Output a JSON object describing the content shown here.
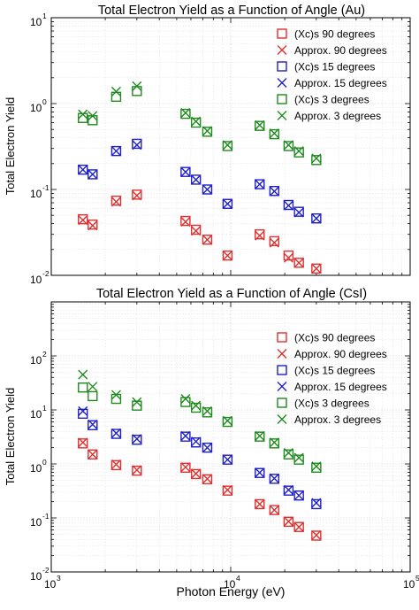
{
  "colors": {
    "au90": "#e03030",
    "au15": "#2020c8",
    "au3": "#1e8a1e"
  },
  "chart_data": [
    {
      "type": "scatter",
      "title": "Total Electron Yield as a Function of Angle (Au)",
      "xlabel": "",
      "ylabel": "Total Electron Yield",
      "xscale": "log",
      "yscale": "log",
      "xlim": [
        1000,
        100000
      ],
      "ylim": [
        0.01,
        10
      ],
      "xticks": [
        {
          "value": 1000,
          "base": "10",
          "exp": "3"
        },
        {
          "value": 10000,
          "base": "10",
          "exp": "4"
        },
        {
          "value": 100000,
          "base": "10",
          "exp": "5"
        }
      ],
      "yticks": [
        {
          "value": 0.01,
          "base": "10",
          "exp": "-2"
        },
        {
          "value": 0.1,
          "base": "10",
          "exp": "-1"
        },
        {
          "value": 1,
          "base": "10",
          "exp": "0"
        },
        {
          "value": 10,
          "base": "10",
          "exp": "1"
        }
      ],
      "grid": true,
      "legend": "top-right",
      "series": [
        {
          "name": "(Xc)s 90 degrees",
          "marker": "square",
          "color": "#e03030",
          "x": [
            1500,
            1700,
            2300,
            3000,
            5600,
            6400,
            7400,
            9600,
            14500,
            17500,
            21000,
            24000,
            30000
          ],
          "y": [
            0.045,
            0.039,
            0.074,
            0.087,
            0.043,
            0.034,
            0.026,
            0.017,
            0.03,
            0.025,
            0.017,
            0.014,
            0.012
          ]
        },
        {
          "name": "Approx. 90 degrees",
          "marker": "x",
          "color": "#e03030",
          "x": [
            1500,
            1700,
            2300,
            3000,
            5600,
            6400,
            7400,
            9600,
            14500,
            17500,
            21000,
            24000,
            30000
          ],
          "y": [
            0.044,
            0.038,
            0.072,
            0.085,
            0.042,
            0.033,
            0.026,
            0.017,
            0.029,
            0.024,
            0.016,
            0.014,
            0.012
          ]
        },
        {
          "name": "(Xc)s 15 degrees",
          "marker": "square",
          "color": "#2020c8",
          "x": [
            1500,
            1700,
            2300,
            3000,
            5600,
            6400,
            7400,
            9600,
            14500,
            17500,
            21000,
            24000,
            30000
          ],
          "y": [
            0.17,
            0.15,
            0.28,
            0.34,
            0.16,
            0.13,
            0.1,
            0.068,
            0.115,
            0.096,
            0.066,
            0.055,
            0.046
          ]
        },
        {
          "name": "Approx. 15 degrees",
          "marker": "x",
          "color": "#2020c8",
          "x": [
            1500,
            1700,
            2300,
            3000,
            5600,
            6400,
            7400,
            9600,
            14500,
            17500,
            21000,
            24000,
            30000
          ],
          "y": [
            0.17,
            0.15,
            0.28,
            0.33,
            0.16,
            0.13,
            0.1,
            0.068,
            0.115,
            0.095,
            0.065,
            0.054,
            0.046
          ]
        },
        {
          "name": "(Xc)s 3 degrees",
          "marker": "square",
          "color": "#1e8a1e",
          "x": [
            1500,
            1700,
            2300,
            3000,
            5600,
            6400,
            7400,
            9600,
            14500,
            17500,
            21000,
            24000,
            30000
          ],
          "y": [
            0.68,
            0.64,
            1.2,
            1.4,
            0.76,
            0.6,
            0.47,
            0.32,
            0.55,
            0.44,
            0.32,
            0.27,
            0.22
          ]
        },
        {
          "name": "Approx. 3 degrees",
          "marker": "x",
          "color": "#1e8a1e",
          "x": [
            1500,
            1700,
            2300,
            3000,
            5600,
            6400,
            7400,
            9600,
            14500,
            17500,
            21000,
            24000,
            30000
          ],
          "y": [
            0.75,
            0.72,
            1.38,
            1.6,
            0.78,
            0.62,
            0.48,
            0.33,
            0.56,
            0.45,
            0.33,
            0.28,
            0.23
          ]
        }
      ]
    },
    {
      "type": "scatter",
      "title": "Total Electron Yield as a Function of Angle (CsI)",
      "xlabel": "Photon Energy (eV)",
      "ylabel": "Total Electron Yield",
      "xscale": "log",
      "yscale": "log",
      "xlim": [
        1000,
        100000
      ],
      "ylim": [
        0.01,
        1000
      ],
      "xticks": [
        {
          "value": 1000,
          "base": "10",
          "exp": "3"
        },
        {
          "value": 10000,
          "base": "10",
          "exp": "4"
        },
        {
          "value": 100000,
          "base": "10",
          "exp": "5"
        }
      ],
      "yticks": [
        {
          "value": 0.01,
          "base": "10",
          "exp": "-2"
        },
        {
          "value": 0.1,
          "base": "10",
          "exp": "-1"
        },
        {
          "value": 1,
          "base": "10",
          "exp": "0"
        },
        {
          "value": 10,
          "base": "10",
          "exp": "1"
        },
        {
          "value": 100,
          "base": "10",
          "exp": "2"
        }
      ],
      "grid": true,
      "legend": "top-right",
      "series": [
        {
          "name": "(Xc)s 90 degrees",
          "marker": "square",
          "color": "#e03030",
          "x": [
            1500,
            1700,
            2300,
            3000,
            5600,
            6400,
            7400,
            9600,
            14500,
            17500,
            21000,
            24000,
            30000
          ],
          "y": [
            2.4,
            1.5,
            0.95,
            0.75,
            0.85,
            0.65,
            0.52,
            0.32,
            0.18,
            0.14,
            0.085,
            0.068,
            0.047
          ]
        },
        {
          "name": "Approx. 90 degrees",
          "marker": "x",
          "color": "#e03030",
          "x": [
            1500,
            1700,
            2300,
            3000,
            5600,
            6400,
            7400,
            9600,
            14500,
            17500,
            21000,
            24000,
            30000
          ],
          "y": [
            2.5,
            1.5,
            0.98,
            0.77,
            0.87,
            0.66,
            0.53,
            0.33,
            0.18,
            0.14,
            0.086,
            0.068,
            0.048
          ]
        },
        {
          "name": "(Xc)s 15 degrees",
          "marker": "square",
          "color": "#2020c8",
          "x": [
            1500,
            1700,
            2300,
            3000,
            5600,
            6400,
            7400,
            9600,
            14500,
            17500,
            21000,
            24000,
            30000
          ],
          "y": [
            8.5,
            5.2,
            3.6,
            2.8,
            3.2,
            2.5,
            2.0,
            1.2,
            0.68,
            0.53,
            0.32,
            0.26,
            0.18
          ]
        },
        {
          "name": "Approx. 15 degrees",
          "marker": "x",
          "color": "#2020c8",
          "x": [
            1500,
            1700,
            2300,
            3000,
            5600,
            6400,
            7400,
            9600,
            14500,
            17500,
            21000,
            24000,
            30000
          ],
          "y": [
            9.5,
            5.4,
            3.7,
            2.9,
            3.3,
            2.6,
            2.0,
            1.2,
            0.69,
            0.54,
            0.33,
            0.26,
            0.19
          ]
        },
        {
          "name": "(Xc)s 3 degrees",
          "marker": "square",
          "color": "#1e8a1e",
          "x": [
            1500,
            1700,
            2300,
            3000,
            5600,
            6400,
            7400,
            9600,
            14500,
            17500,
            21000,
            24000,
            30000
          ],
          "y": [
            26,
            18,
            16,
            12,
            14,
            11,
            9,
            6,
            3.2,
            2.4,
            1.5,
            1.2,
            0.85
          ]
        },
        {
          "name": "Approx. 3 degrees",
          "marker": "x",
          "color": "#1e8a1e",
          "x": [
            1500,
            1700,
            2300,
            3000,
            5600,
            6400,
            7400,
            9600,
            14500,
            17500,
            21000,
            24000,
            30000
          ],
          "y": [
            45,
            27,
            19,
            14,
            16,
            12,
            9.5,
            6.3,
            3.3,
            2.5,
            1.6,
            1.3,
            0.9
          ]
        }
      ]
    }
  ]
}
